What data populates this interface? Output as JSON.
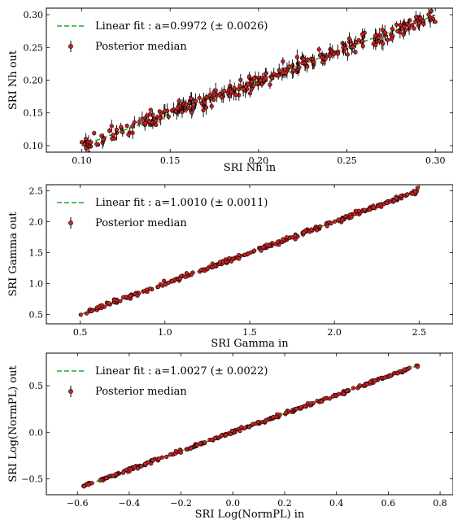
{
  "chart_data": [
    {
      "type": "scatter",
      "xlabel": "SRI Nh in",
      "ylabel": "SRI Nh out",
      "xlim": [
        0.08,
        0.31
      ],
      "ylim": [
        0.09,
        0.31
      ],
      "xticks": [
        0.1,
        0.15,
        0.2,
        0.25,
        0.3
      ],
      "xtick_labels": [
        "0.10",
        "0.15",
        "0.20",
        "0.25",
        "0.30"
      ],
      "yticks": [
        0.1,
        0.15,
        0.2,
        0.25,
        0.3
      ],
      "ytick_labels": [
        "0.10",
        "0.15",
        "0.20",
        "0.25",
        "0.30"
      ],
      "legend": [
        "Linear fit : a=0.9972 (± 0.0026)",
        "Posterior median"
      ],
      "legend_position": "top-left",
      "fit": {
        "slope": 0.9972,
        "x": [
          0.1,
          0.3
        ]
      },
      "n_points": 300,
      "x_range": [
        0.1,
        0.3
      ],
      "scatter_sd": 0.0055,
      "error_half_width": [
        0.002,
        0.012
      ],
      "colors": {
        "points": "#cc2222",
        "fit": "#22aa22",
        "errorbars": "#000000"
      }
    },
    {
      "type": "scatter",
      "xlabel": "SRI Gamma in",
      "ylabel": "SRI Gamma out",
      "xlim": [
        0.3,
        2.7
      ],
      "ylim": [
        0.35,
        2.6
      ],
      "xticks": [
        0.5,
        1.0,
        1.5,
        2.0,
        2.5
      ],
      "xtick_labels": [
        "0.5",
        "1.0",
        "1.5",
        "2.0",
        "2.5"
      ],
      "yticks": [
        0.5,
        1.0,
        1.5,
        2.0,
        2.5
      ],
      "ytick_labels": [
        "0.5",
        "1.0",
        "1.5",
        "2.0",
        "2.5"
      ],
      "legend": [
        "Linear fit : a=1.0010 (± 0.0011)",
        "Posterior median"
      ],
      "legend_position": "top-left",
      "fit": {
        "slope": 1.001,
        "x": [
          0.5,
          2.5
        ]
      },
      "n_points": 300,
      "x_range": [
        0.5,
        2.5
      ],
      "scatter_sd": 0.018,
      "error_half_width": [
        0.005,
        0.03
      ],
      "colors": {
        "points": "#cc2222",
        "fit": "#22aa22",
        "errorbars": "#000000"
      }
    },
    {
      "type": "scatter",
      "xlabel": "SRI Log(NormPL) in",
      "ylabel": "SRI Log(NormPL) out",
      "xlim": [
        -0.72,
        0.85
      ],
      "ylim": [
        -0.67,
        0.85
      ],
      "xticks": [
        -0.6,
        -0.4,
        -0.2,
        0.0,
        0.2,
        0.4,
        0.6,
        0.8
      ],
      "xtick_labels": [
        "−0.6",
        "−0.4",
        "−0.2",
        "0.0",
        "0.2",
        "0.4",
        "0.6",
        "0.8"
      ],
      "yticks": [
        -0.5,
        0.0,
        0.5
      ],
      "ytick_labels": [
        "−0.5",
        "0.0",
        "0.5"
      ],
      "legend": [
        "Linear fit : a=1.0027 (± 0.0022)",
        "Posterior median"
      ],
      "legend_position": "top-left",
      "fit": {
        "slope": 1.0027,
        "x": [
          -0.58,
          0.72
        ]
      },
      "n_points": 300,
      "x_range": [
        -0.58,
        0.72
      ],
      "scatter_sd": 0.008,
      "error_half_width": [
        0.003,
        0.015
      ],
      "colors": {
        "points": "#cc2222",
        "fit": "#22aa22",
        "errorbars": "#000000"
      }
    }
  ]
}
